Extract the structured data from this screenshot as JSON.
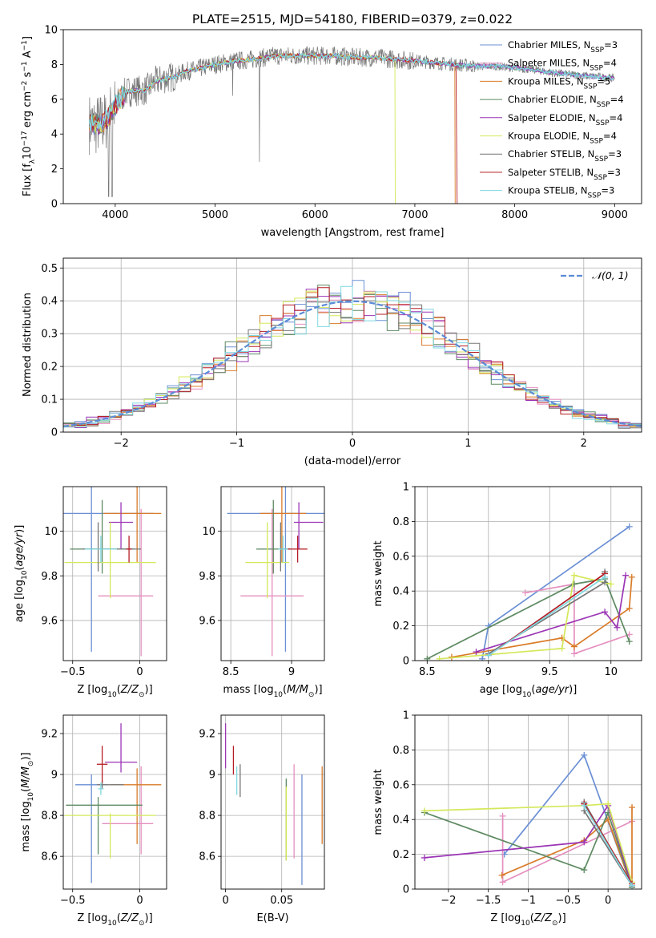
{
  "figure": {
    "title": "PLATE=2515, MJD=54180, FIBERID=0379, z=0.022"
  },
  "models": [
    {
      "name": "Chabrier MILES",
      "nssp": "3",
      "color": "#6a8fd4"
    },
    {
      "name": "Salpeter MILES",
      "nssp": "4",
      "color": "#e58fbf"
    },
    {
      "name": "Kroupa MILES",
      "nssp": "5",
      "color": "#d97b28"
    },
    {
      "name": "Chabrier ELODIE",
      "nssp": "4",
      "color": "#5e8a62"
    },
    {
      "name": "Salpeter ELODIE",
      "nssp": "4",
      "color": "#9b35b5"
    },
    {
      "name": "Kroupa ELODIE",
      "nssp": "4",
      "color": "#d4e85a"
    },
    {
      "name": "Chabrier STELIB",
      "nssp": "3",
      "color": "#777777"
    },
    {
      "name": "Salpeter STELIB",
      "nssp": "3",
      "color": "#b51d25"
    },
    {
      "name": "Kroupa STELIB",
      "nssp": "3",
      "color": "#7fd8e0"
    }
  ],
  "chart_data": [
    {
      "id": "spectrum",
      "type": "line",
      "title": "PLATE=2515, MJD=54180, FIBERID=0379, z=0.022",
      "xlabel": "wavelength [Angstrom, rest frame]",
      "ylabel": "Flux [f",
      "ylabel_parts": [
        "Flux [f",
        "λ",
        "10",
        "−17",
        " erg cm",
        "−2",
        " s",
        "−1",
        " A",
        "−1",
        "]"
      ],
      "xlim": [
        3480,
        9270
      ],
      "ylim": [
        0,
        10
      ],
      "xticks": [
        4000,
        5000,
        6000,
        7000,
        8000,
        9000
      ],
      "yticks": [
        0,
        2,
        4,
        6,
        8,
        10
      ],
      "legend_position": "upper-right",
      "legend_label_prefix": "N",
      "legend_label_sub": "SSP",
      "grid": false,
      "continuum_x": [
        3740,
        3800,
        3900,
        4000,
        4100,
        4200,
        4300,
        4400,
        4500,
        4600,
        4700,
        4800,
        5000,
        5200,
        5400,
        5600,
        5800,
        6000,
        6200,
        6400,
        6600,
        6800,
        7000,
        7200,
        7400,
        7600,
        7800,
        8000,
        8200,
        8400,
        8600,
        8800,
        9000
      ],
      "continuum_y": [
        4.6,
        4.5,
        4.7,
        5.6,
        6.4,
        6.5,
        6.5,
        7.0,
        7.2,
        7.3,
        7.6,
        7.7,
        8.0,
        8.2,
        8.3,
        8.5,
        8.5,
        8.5,
        8.5,
        8.4,
        8.4,
        8.3,
        8.2,
        8.1,
        8.0,
        7.9,
        7.9,
        7.8,
        7.7,
        7.5,
        7.4,
        7.3,
        7.2
      ]
    },
    {
      "id": "residuals",
      "type": "bar",
      "xlabel": "(data-model)/error",
      "ylabel": "Normed distribution",
      "xlim": [
        -2.5,
        2.5
      ],
      "ylim": [
        0,
        0.53
      ],
      "xticks": [
        -2,
        -1,
        0,
        1,
        2
      ],
      "yticks": [
        0.0,
        0.1,
        0.2,
        0.3,
        0.4,
        0.5
      ],
      "grid": true,
      "legend_position": "upper-right",
      "gaussian_label": "𝒩(0, 1)",
      "gaussian_color": "#5b8bd6",
      "bin_width": 0.1
    },
    {
      "id": "age-vs-Z",
      "type": "scatter",
      "xlabel": "Z [log10(Z/Z⊙)]",
      "ylabel": "age  [log10(age/yr)]",
      "xlim": [
        -0.57,
        0.2
      ],
      "ylim": [
        9.42,
        10.2
      ],
      "xticks": [
        -0.5,
        0.0
      ],
      "yticks": [
        9.6,
        9.8,
        10.0
      ],
      "grid": true,
      "points": [
        {
          "x": -0.36,
          "y": 10.08,
          "xerr": [
            0.46,
            0.46
          ],
          "yerr": [
            0.62,
            0.62
          ]
        },
        {
          "x": 0.01,
          "y": 9.71,
          "xerr": [
            0.32,
            0.09
          ],
          "yerr": [
            0.27,
            0.39
          ]
        },
        {
          "x": -0.02,
          "y": 10.08,
          "xerr": [
            0.25,
            0.18
          ],
          "yerr": [
            0.22,
            0.52
          ]
        },
        {
          "x": -0.28,
          "y": 9.92,
          "xerr": [
            0.24,
            0.24
          ],
          "yerr": [
            0.11,
            0.22
          ]
        },
        {
          "x": -0.14,
          "y": 10.04,
          "xerr": [
            0.09,
            0.09
          ],
          "yerr": [
            0.12,
            0.09
          ]
        },
        {
          "x": -0.22,
          "y": 9.86,
          "xerr": [
            0.34,
            0.34
          ],
          "yerr": [
            0.16,
            0.18
          ]
        },
        {
          "x": -0.31,
          "y": 9.92,
          "xerr": [
            0.12,
            0.32
          ],
          "yerr": [
            0.1,
            0.12
          ]
        },
        {
          "x": -0.08,
          "y": 9.92,
          "xerr": [
            0.02,
            0.02
          ],
          "yerr": [
            0.06,
            0.06
          ]
        },
        {
          "x": -0.29,
          "y": 9.92,
          "xerr": [
            0.12,
            0.12
          ],
          "yerr": [
            0.06,
            0.06
          ]
        }
      ]
    },
    {
      "id": "age-vs-mass",
      "type": "scatter",
      "xlabel": "mass [log10(M/M⊙)]",
      "xlim": [
        8.42,
        9.27
      ],
      "ylim": [
        9.42,
        10.2
      ],
      "xticks": [
        8.5,
        9.0
      ],
      "yticks": [
        9.6,
        9.8,
        10.0
      ],
      "grid": true,
      "points": [
        {
          "x": 8.95,
          "y": 10.08,
          "xerr": [
            0.48,
            0.48
          ],
          "yerr": [
            0.62,
            0.62
          ]
        },
        {
          "x": 8.84,
          "y": 9.71,
          "xerr": [
            0.26,
            0.26
          ],
          "yerr": [
            0.27,
            0.39
          ]
        },
        {
          "x": 8.92,
          "y": 10.08,
          "xerr": [
            0.18,
            0.2
          ],
          "yerr": [
            0.22,
            0.52
          ]
        },
        {
          "x": 8.85,
          "y": 9.92,
          "xerr": [
            0.14,
            0.14
          ],
          "yerr": [
            0.11,
            0.22
          ]
        },
        {
          "x": 9.06,
          "y": 10.04,
          "xerr": [
            0.04,
            0.2
          ],
          "yerr": [
            0.12,
            0.09
          ]
        },
        {
          "x": 8.8,
          "y": 9.86,
          "xerr": [
            0.18,
            0.18
          ],
          "yerr": [
            0.16,
            0.18
          ]
        },
        {
          "x": 8.91,
          "y": 9.92,
          "xerr": [
            0.0,
            0.08
          ],
          "yerr": [
            0.1,
            0.12
          ]
        },
        {
          "x": 9.05,
          "y": 9.92,
          "xerr": [
            0.08,
            0.08
          ],
          "yerr": [
            0.06,
            0.06
          ]
        },
        {
          "x": 8.93,
          "y": 9.92,
          "xerr": [
            0.04,
            0.04
          ],
          "yerr": [
            0.06,
            0.06
          ]
        }
      ]
    },
    {
      "id": "massweight-vs-age",
      "type": "line",
      "xlabel": "age  [log10(age/yr)]",
      "ylabel": "mass weight",
      "xlim": [
        8.4,
        10.25
      ],
      "ylim": [
        0,
        1.0
      ],
      "xticks": [
        8.5,
        9.0,
        9.5,
        10.0
      ],
      "yticks": [
        0.0,
        0.2,
        0.4,
        0.6,
        0.8,
        1.0
      ],
      "grid": true,
      "series": [
        {
          "x": [
            10.15,
            9.0,
            8.95
          ],
          "y": [
            0.77,
            0.2,
            0.01
          ]
        },
        {
          "x": [
            9.3,
            9.7,
            9.7,
            10.15
          ],
          "y": [
            0.39,
            0.44,
            0.04,
            0.15
          ]
        },
        {
          "x": [
            8.7,
            9.6,
            9.7,
            10.15,
            10.17
          ],
          "y": [
            0.02,
            0.13,
            0.08,
            0.3,
            0.48
          ]
        },
        {
          "x": [
            8.5,
            9.7,
            9.95,
            10.15
          ],
          "y": [
            0.01,
            0.44,
            0.47,
            0.11
          ]
        },
        {
          "x": [
            8.9,
            9.95,
            10.05,
            10.12
          ],
          "y": [
            0.05,
            0.28,
            0.19,
            0.49
          ]
        },
        {
          "x": [
            8.6,
            9.6,
            9.7,
            10.0
          ],
          "y": [
            0.01,
            0.07,
            0.49,
            0.44
          ]
        },
        {
          "x": [
            9.0,
            9.95,
            9.95
          ],
          "y": [
            0.04,
            0.45,
            0.51
          ]
        },
        {
          "x": [
            9.0,
            9.95
          ],
          "y": [
            0.03,
            0.5
          ]
        },
        {
          "x": [
            9.0,
            9.95
          ],
          "y": [
            0.03,
            0.48
          ]
        }
      ]
    },
    {
      "id": "mass-vs-Z",
      "type": "scatter",
      "xlabel": "Z [log10(Z/Z⊙)]",
      "ylabel": "mass [log10(M/M⊙)]",
      "xlim": [
        -0.57,
        0.2
      ],
      "ylim": [
        8.44,
        9.29
      ],
      "xticks": [
        -0.5,
        0.0
      ],
      "yticks": [
        8.6,
        8.8,
        9.0,
        9.2
      ],
      "grid": true,
      "points": [
        {
          "x": -0.36,
          "y": 8.95,
          "xerr": [
            0.12,
            0.12
          ],
          "yerr": [
            0.48,
            0.05
          ]
        },
        {
          "x": 0.01,
          "y": 8.76,
          "xerr": [
            0.29,
            0.09
          ],
          "yerr": [
            0.15,
            0.28
          ]
        },
        {
          "x": -0.02,
          "y": 8.95,
          "xerr": [
            0.2,
            0.18
          ],
          "yerr": [
            0.29,
            0.08
          ]
        },
        {
          "x": -0.31,
          "y": 8.85,
          "xerr": [
            0.24,
            0.33
          ],
          "yerr": [
            0.24,
            0.04
          ]
        },
        {
          "x": -0.14,
          "y": 9.06,
          "xerr": [
            0.12,
            0.12
          ],
          "yerr": [
            0.05,
            0.19
          ]
        },
        {
          "x": -0.22,
          "y": 8.8,
          "xerr": [
            0.34,
            0.34
          ],
          "yerr": [
            0.21,
            0.01
          ]
        },
        {
          "x": -0.28,
          "y": 8.95,
          "xerr": [
            0.04,
            0.16
          ],
          "yerr": [
            0.02,
            0.02
          ]
        },
        {
          "x": -0.28,
          "y": 9.05,
          "xerr": [
            0.04,
            0.04
          ],
          "yerr": [
            0.09,
            0.09
          ]
        },
        {
          "x": -0.29,
          "y": 8.93,
          "xerr": [
            0.02,
            0.02
          ],
          "yerr": [
            0.03,
            0.03
          ]
        }
      ]
    },
    {
      "id": "mass-vs-ebv",
      "type": "scatter",
      "xlabel": "E(B-V)",
      "xlim": [
        -0.004,
        0.088
      ],
      "ylim": [
        8.44,
        9.29
      ],
      "xticks": [
        0.0,
        0.05
      ],
      "yticks": [
        8.6,
        8.8,
        9.0,
        9.2
      ],
      "grid": true,
      "points": [
        {
          "x": 0.068,
          "y": 8.73,
          "xerr": [
            0,
            0
          ],
          "yerr": [
            0.27,
            0.27
          ]
        },
        {
          "x": 0.061,
          "y": 8.82,
          "xerr": [
            0,
            0
          ],
          "yerr": [
            0.23,
            0.23
          ]
        },
        {
          "x": 0.086,
          "y": 8.85,
          "xerr": [
            0,
            0
          ],
          "yerr": [
            0.19,
            0.19
          ]
        },
        {
          "x": 0.054,
          "y": 8.78,
          "xerr": [
            0,
            0
          ],
          "yerr": [
            0.2,
            0.2
          ]
        },
        {
          "x": 0.0,
          "y": 9.14,
          "xerr": [
            0,
            0
          ],
          "yerr": [
            0.11,
            0.11
          ]
        },
        {
          "x": 0.054,
          "y": 8.76,
          "xerr": [
            0,
            0
          ],
          "yerr": [
            0.18,
            0.18
          ]
        },
        {
          "x": 0.013,
          "y": 8.97,
          "xerr": [
            0,
            0
          ],
          "yerr": [
            0.08,
            0.08
          ]
        },
        {
          "x": 0.007,
          "y": 9.07,
          "xerr": [
            0,
            0
          ],
          "yerr": [
            0.07,
            0.07
          ]
        },
        {
          "x": 0.01,
          "y": 8.97,
          "xerr": [
            0,
            0
          ],
          "yerr": [
            0.07,
            0.07
          ]
        }
      ]
    },
    {
      "id": "massweight-vs-Z",
      "type": "line",
      "xlabel": "Z [log10(Z/Z⊙)]",
      "ylabel": "mass weight",
      "xlim": [
        -2.42,
        0.42
      ],
      "ylim": [
        0,
        1.0
      ],
      "xticks": [
        -2.0,
        -1.5,
        -1.0,
        -0.5,
        0.0
      ],
      "yticks": [
        0.0,
        0.2,
        0.4,
        0.6,
        0.8,
        1.0
      ],
      "grid": true,
      "series": [
        {
          "x": [
            -1.3,
            -0.3,
            0.3
          ],
          "y": [
            0.2,
            0.77,
            0.01
          ]
        },
        {
          "x": [
            -1.32,
            -1.32,
            0.3
          ],
          "y": [
            0.42,
            0.04,
            0.39
          ]
        },
        {
          "x": [
            -1.33,
            -0.3,
            0.0,
            0.3,
            0.3
          ],
          "y": [
            0.08,
            0.28,
            0.4,
            0.01,
            0.47
          ]
        },
        {
          "x": [
            -2.3,
            -0.3,
            0.0,
            0.3
          ],
          "y": [
            0.44,
            0.11,
            0.44,
            0.01
          ]
        },
        {
          "x": [
            -2.3,
            -0.3,
            0.0,
            0.3
          ],
          "y": [
            0.18,
            0.27,
            0.48,
            0.02
          ]
        },
        {
          "x": [
            -2.3,
            -0.3,
            0.0,
            0.3
          ],
          "y": [
            0.45,
            0.48,
            0.49,
            0.04
          ]
        },
        {
          "x": [
            -0.3,
            0.3,
            -0.3
          ],
          "y": [
            0.5,
            0.02,
            0.45
          ]
        },
        {
          "x": [
            -0.3,
            0.3
          ],
          "y": [
            0.49,
            0.03
          ]
        },
        {
          "x": [
            -0.3,
            0.3
          ],
          "y": [
            0.48,
            0.02
          ]
        }
      ]
    }
  ]
}
